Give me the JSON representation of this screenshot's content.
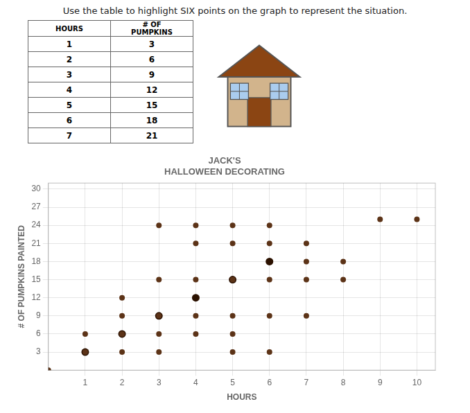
{
  "chart_data": {
    "type": "scatter",
    "title": "Use the table to highlight SIX points on the graph to represent the situation.",
    "subtitle": [
      "JACK'S",
      "HALLOWEEN DECORATING"
    ],
    "table": {
      "header": [
        "HOURS",
        "# OF\nPUMPKINS"
      ],
      "rows": [
        [
          1,
          3
        ],
        [
          2,
          6
        ],
        [
          3,
          9
        ],
        [
          4,
          12
        ],
        [
          5,
          15
        ],
        [
          6,
          18
        ],
        [
          7,
          21
        ]
      ]
    },
    "x_label": "HOURS",
    "y_label": "# OF PUMPKINS PAINTED",
    "xlim": [
      0,
      10.5
    ],
    "ylim": [
      0,
      31
    ],
    "xticks": [
      1,
      2,
      3,
      4,
      5,
      6,
      7,
      8,
      9,
      10
    ],
    "yticks": [
      3,
      6,
      9,
      12,
      15,
      18,
      21,
      24,
      27,
      30
    ],
    "grid": true,
    "series": [
      {
        "color": "#5C3317",
        "values": [
          [
            0,
            0
          ],
          [
            1,
            3
          ],
          [
            1,
            6
          ],
          [
            2,
            3
          ],
          [
            2,
            6
          ],
          [
            2,
            9
          ],
          [
            2,
            12
          ],
          [
            3,
            3
          ],
          [
            3,
            6
          ],
          [
            3,
            9
          ],
          [
            3,
            15
          ],
          [
            3,
            24
          ],
          [
            4,
            6
          ],
          [
            4,
            9
          ],
          [
            4,
            15
          ],
          [
            4,
            21
          ],
          [
            4,
            24
          ],
          [
            5,
            3
          ],
          [
            5,
            6
          ],
          [
            5,
            9
          ],
          [
            5,
            15
          ],
          [
            5,
            21
          ],
          [
            5,
            24
          ],
          [
            6,
            3
          ],
          [
            6,
            9
          ],
          [
            6,
            15
          ],
          [
            6,
            21
          ],
          [
            6,
            24
          ],
          [
            7,
            9
          ],
          [
            7,
            15
          ],
          [
            7,
            18
          ],
          [
            7,
            21
          ],
          [
            8,
            15
          ],
          [
            8,
            18
          ],
          [
            9,
            25
          ],
          [
            10,
            25
          ]
        ]
      },
      {
        "color": "#2B1100",
        "values": [
          [
            1,
            3
          ],
          [
            2,
            6
          ],
          [
            3,
            9
          ],
          [
            4,
            12
          ],
          [
            5,
            15
          ],
          [
            6,
            18
          ]
        ]
      }
    ]
  }
}
